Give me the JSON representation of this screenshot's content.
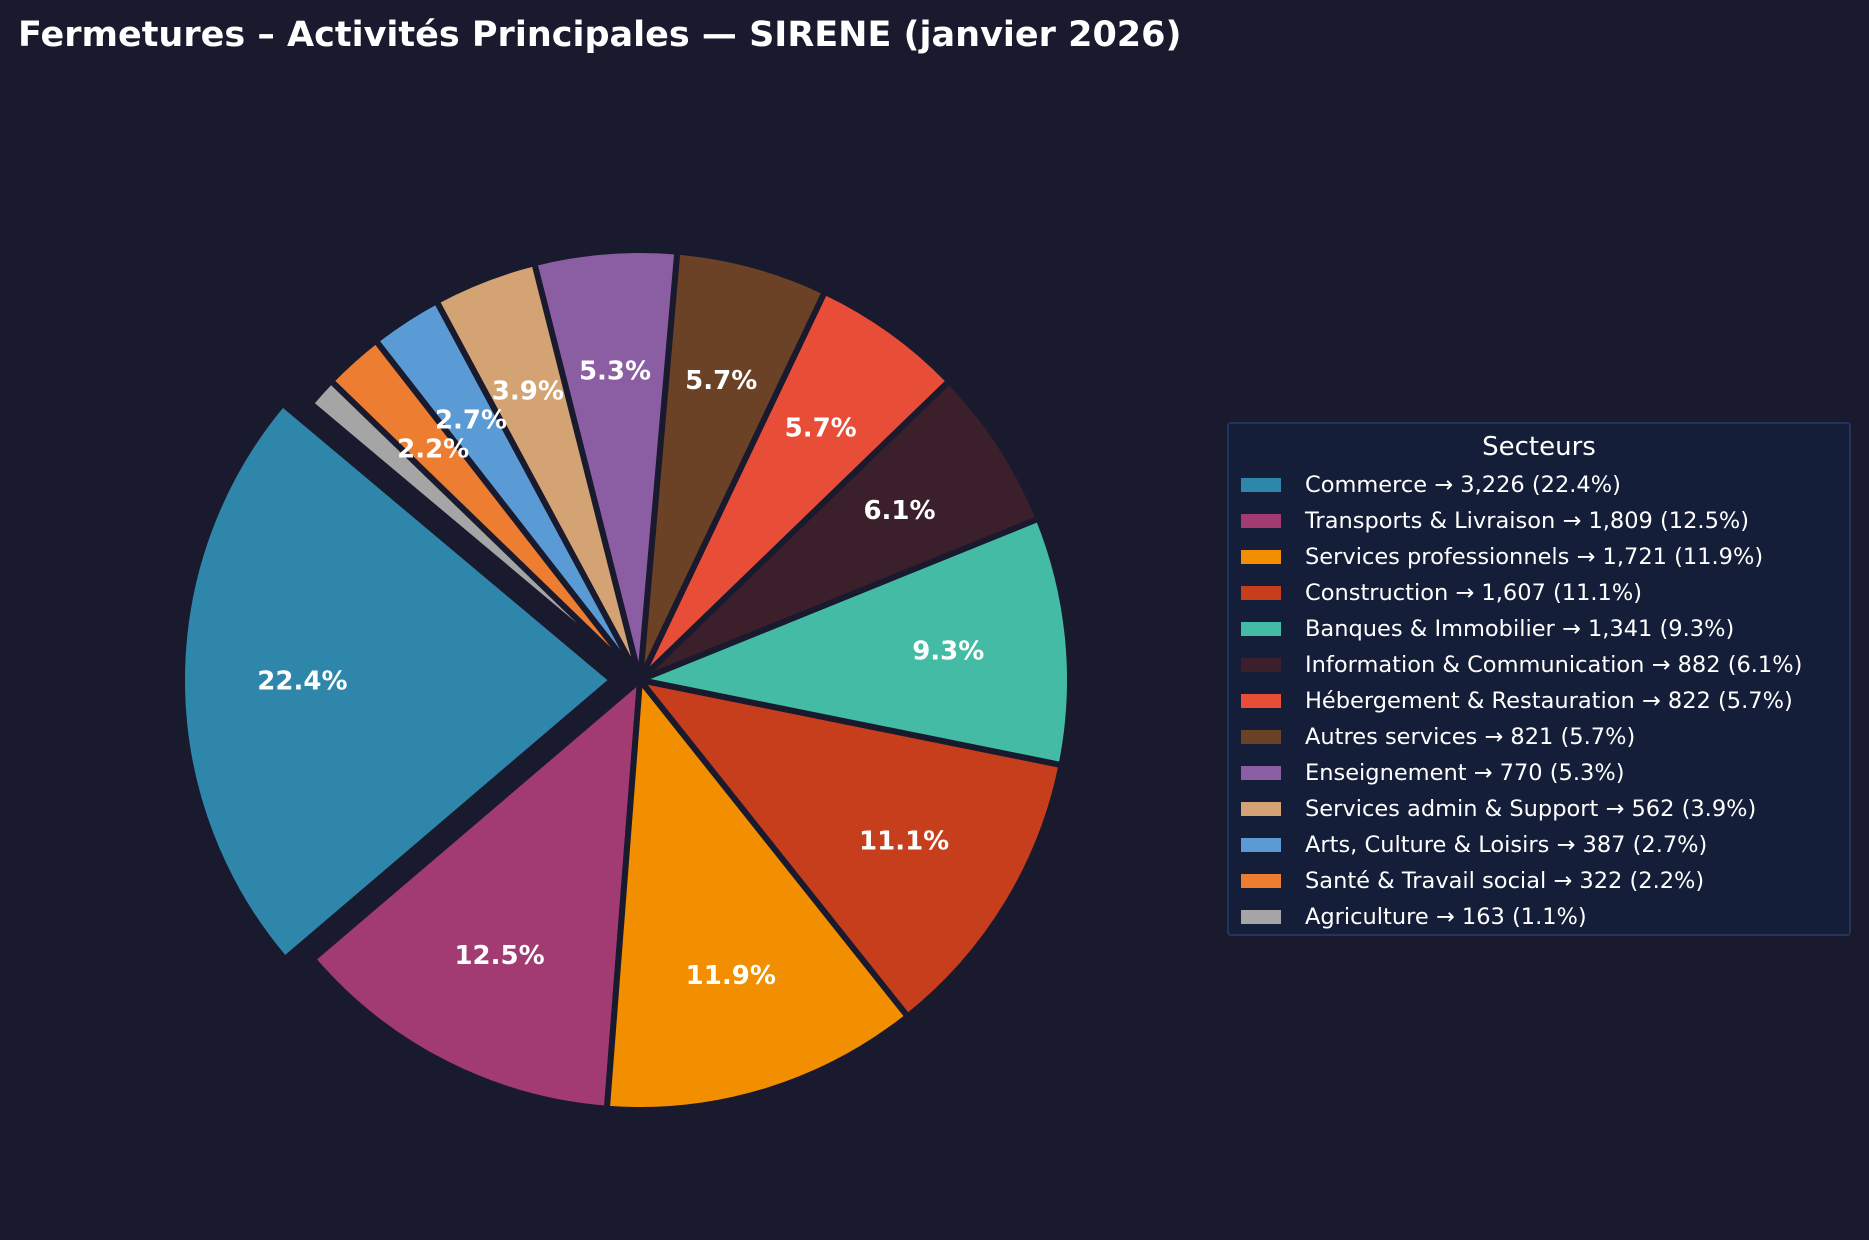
{
  "chart_data": {
    "type": "pie",
    "title": "Fermetures – Activités Principales — SIRENE (janvier 2026)",
    "legend_title": "Secteurs",
    "legend_position": "right",
    "start_angle_deg": 140,
    "direction": "counterclockwise",
    "slices": [
      {
        "name": "Commerce",
        "value": 3226,
        "pct_label": "22.4%",
        "legend_text": "Commerce  →  3,226 (22.4%)",
        "color": "#2e86ab",
        "explode": true
      },
      {
        "name": "Transports & Livraison",
        "value": 1809,
        "pct_label": "12.5%",
        "legend_text": "Transports & Livraison  →  1,809 (12.5%)",
        "color": "#a23b72",
        "explode": false
      },
      {
        "name": "Services professionnels",
        "value": 1721,
        "pct_label": "11.9%",
        "legend_text": "Services professionnels  →  1,721 (11.9%)",
        "color": "#f18f01",
        "explode": false
      },
      {
        "name": "Construction",
        "value": 1607,
        "pct_label": "11.1%",
        "legend_text": "Construction  →  1,607 (11.1%)",
        "color": "#c73e1d",
        "explode": false
      },
      {
        "name": "Banques & Immobilier",
        "value": 1341,
        "pct_label": "9.3%",
        "legend_text": "Banques & Immobilier  →  1,341 (9.3%)",
        "color": "#44bba4",
        "explode": false
      },
      {
        "name": "Information & Communication",
        "value": 882,
        "pct_label": "6.1%",
        "legend_text": "Information & Communication  →  882 (6.1%)",
        "color": "#3b1f2b",
        "explode": false
      },
      {
        "name": "Hébergement & Restauration",
        "value": 822,
        "pct_label": "5.7%",
        "legend_text": "Hébergement & Restauration  →  822 (5.7%)",
        "color": "#e84e37",
        "explode": false
      },
      {
        "name": "Autres services",
        "value": 821,
        "pct_label": "5.7%",
        "legend_text": "Autres services  →  821 (5.7%)",
        "color": "#6b4226",
        "explode": false
      },
      {
        "name": "Enseignement",
        "value": 770,
        "pct_label": "5.3%",
        "legend_text": "Enseignement  →  770 (5.3%)",
        "color": "#8b5ea3",
        "explode": false
      },
      {
        "name": "Services admin & Support",
        "value": 562,
        "pct_label": "3.9%",
        "legend_text": "Services admin & Support  →  562 (3.9%)",
        "color": "#d4a373",
        "explode": false
      },
      {
        "name": "Arts, Culture & Loisirs",
        "value": 387,
        "pct_label": "2.7%",
        "legend_text": "Arts, Culture & Loisirs  →  387 (2.7%)",
        "color": "#5b9bd5",
        "explode": false
      },
      {
        "name": "Santé & Travail social",
        "value": 322,
        "pct_label": "2.2%",
        "legend_text": "Santé & Travail social  →  322 (2.2%)",
        "color": "#ed7d31",
        "explode": false
      },
      {
        "name": "Agriculture",
        "value": 163,
        "pct_label": "",
        "legend_text": "Agriculture  →  163 (1.1%)",
        "color": "#a5a5a5",
        "explode": false
      }
    ]
  },
  "colors": {
    "background": "#1a1a2e",
    "slice_edge": "#1a1a2e",
    "legend_background": "#141e38",
    "legend_border": "#22345a",
    "text": "#ffffff"
  }
}
